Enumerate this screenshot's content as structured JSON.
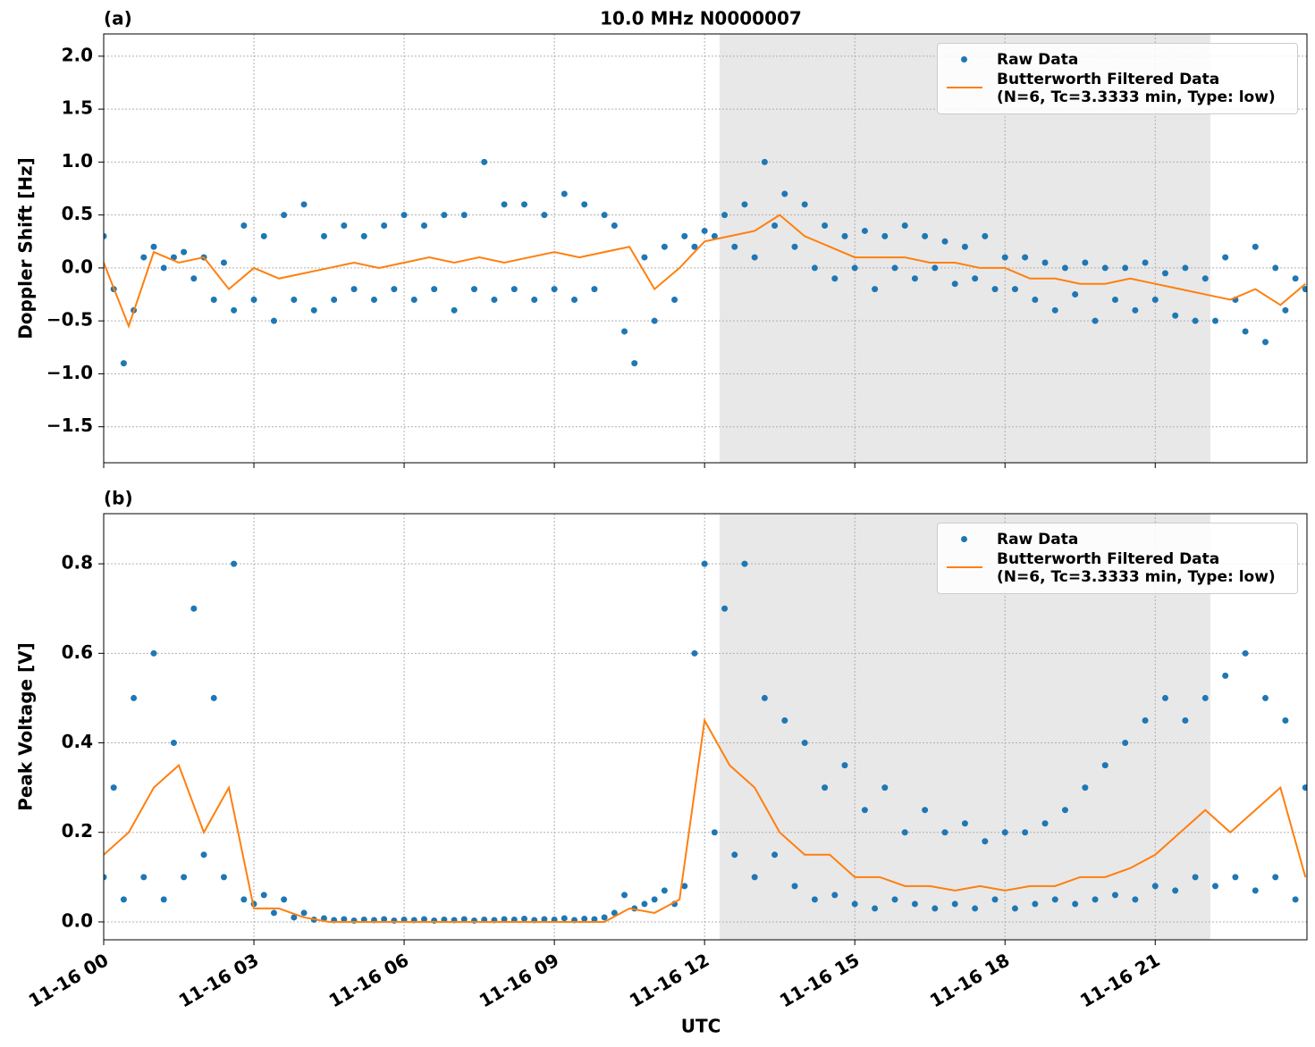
{
  "chart_data": [
    {
      "type": "scatter",
      "panel_label": "(a)",
      "title": "10.0 MHz N0000007",
      "ylabel": "Doppler Shift [Hz]",
      "xlim": [
        0,
        24.03
      ],
      "xticks": [
        0,
        3,
        6,
        9,
        12,
        15,
        18,
        21
      ],
      "ylim": [
        -1.84,
        2.21
      ],
      "yticks": [
        {
          "value": -1.5,
          "label": "−1.5"
        },
        {
          "value": -1.0,
          "label": "−1.0"
        },
        {
          "value": -0.5,
          "label": "−0.5"
        },
        {
          "value": 0,
          "label": "0.0"
        },
        0.5,
        {
          "value": 1.0,
          "label": "1.0"
        },
        1.5,
        {
          "value": 2.0,
          "label": "2.0"
        }
      ],
      "grid": true,
      "legend": "upper right",
      "shaded_span": [
        12.3,
        22.1
      ],
      "shade_color": "#e8e8e8",
      "series": [
        {
          "name": "Raw Data",
          "kind": "markers",
          "color": "#1f77b4",
          "x": [
            0,
            0.2,
            0.4,
            0.6,
            0.8,
            1,
            1.2,
            1.4,
            1.6,
            1.8,
            2,
            2.2,
            2.4,
            2.6,
            2.8,
            3,
            3.2,
            3.4,
            3.6,
            3.8,
            4,
            4.2,
            4.4,
            4.6,
            4.8,
            5,
            5.2,
            5.4,
            5.6,
            5.8,
            6,
            6.2,
            6.4,
            6.6,
            6.8,
            7,
            7.2,
            7.4,
            7.6,
            7.8,
            8,
            8.2,
            8.4,
            8.6,
            8.8,
            9,
            9.2,
            9.4,
            9.6,
            9.8,
            10,
            10.2,
            10.4,
            10.6,
            10.8,
            11,
            11.2,
            11.4,
            11.6,
            11.8,
            12,
            12.2,
            12.4,
            12.6,
            12.8,
            13,
            13.2,
            13.4,
            13.6,
            13.8,
            14,
            14.2,
            14.4,
            14.6,
            14.8,
            15,
            15.2,
            15.4,
            15.6,
            15.8,
            16,
            16.2,
            16.4,
            16.6,
            16.8,
            17,
            17.2,
            17.4,
            17.6,
            17.8,
            18,
            18.2,
            18.4,
            18.6,
            18.8,
            19,
            19.2,
            19.4,
            19.6,
            19.8,
            20,
            20.2,
            20.4,
            20.6,
            20.8,
            21,
            21.2,
            21.4,
            21.6,
            21.8,
            22,
            22.2,
            22.4,
            22.6,
            22.8,
            23,
            23.2,
            23.4,
            23.6,
            23.8,
            24
          ],
          "values": [
            0.3,
            -0.2,
            -0.9,
            -0.4,
            0.1,
            0.2,
            0.0,
            0.1,
            0.15,
            -0.1,
            0.1,
            -0.3,
            0.05,
            -0.4,
            0.4,
            -0.3,
            0.3,
            -0.5,
            0.5,
            -0.3,
            0.6,
            -0.4,
            0.3,
            -0.3,
            0.4,
            -0.2,
            0.3,
            -0.3,
            0.4,
            -0.2,
            0.5,
            -0.3,
            0.4,
            -0.2,
            0.5,
            -0.4,
            0.5,
            -0.2,
            1.0,
            -0.3,
            0.6,
            -0.2,
            0.6,
            -0.3,
            0.5,
            -0.2,
            0.7,
            -0.3,
            0.6,
            -0.2,
            0.5,
            0.4,
            -0.6,
            -0.9,
            0.1,
            -0.5,
            0.2,
            -0.3,
            0.3,
            0.2,
            0.35,
            0.3,
            0.5,
            0.2,
            0.6,
            0.1,
            1.0,
            0.4,
            0.7,
            0.2,
            0.6,
            0.0,
            0.4,
            -0.1,
            0.3,
            0.0,
            0.35,
            -0.2,
            0.3,
            0.0,
            0.4,
            -0.1,
            0.3,
            0.0,
            0.25,
            -0.15,
            0.2,
            -0.1,
            0.3,
            -0.2,
            0.1,
            -0.2,
            0.1,
            -0.3,
            0.05,
            -0.4,
            0.0,
            -0.25,
            0.05,
            -0.5,
            0.0,
            -0.3,
            0.0,
            -0.4,
            0.05,
            -0.3,
            -0.05,
            -0.45,
            0.0,
            -0.5,
            -0.1,
            -0.5,
            0.1,
            -0.3,
            -0.6,
            0.2,
            -0.7,
            0.0,
            -0.4,
            -0.1,
            -0.2
          ]
        },
        {
          "name": "Butterworth Filtered Data\n(N=6, Tc=3.3333 min, Type: low)",
          "kind": "line",
          "color": "#ff7f0e",
          "x": [
            0,
            0.5,
            1,
            1.5,
            2,
            2.5,
            3,
            3.5,
            4,
            4.5,
            5,
            5.5,
            6,
            6.5,
            7,
            7.5,
            8,
            8.5,
            9,
            9.5,
            10,
            10.5,
            11,
            11.5,
            12,
            12.5,
            13,
            13.5,
            14,
            14.5,
            15,
            15.5,
            16,
            16.5,
            17,
            17.5,
            18,
            18.5,
            19,
            19.5,
            20,
            20.5,
            21,
            21.5,
            22,
            22.5,
            23,
            23.5,
            24
          ],
          "values": [
            0.05,
            -0.55,
            0.15,
            0.05,
            0.1,
            -0.2,
            0.0,
            -0.1,
            -0.05,
            0.0,
            0.05,
            0.0,
            0.05,
            0.1,
            0.05,
            0.1,
            0.05,
            0.1,
            0.15,
            0.1,
            0.15,
            0.2,
            -0.2,
            0.0,
            0.25,
            0.3,
            0.35,
            0.5,
            0.3,
            0.2,
            0.1,
            0.1,
            0.1,
            0.05,
            0.05,
            0.0,
            0.0,
            -0.1,
            -0.1,
            -0.15,
            -0.15,
            -0.1,
            -0.15,
            -0.2,
            -0.25,
            -0.3,
            -0.2,
            -0.35,
            -0.15
          ]
        }
      ]
    },
    {
      "type": "scatter",
      "panel_label": "(b)",
      "ylabel": "Peak Voltage [V]",
      "xlabel": "UTC",
      "xlim": [
        0,
        24.03
      ],
      "xticks": [
        {
          "value": 0,
          "label": "11-16 00"
        },
        {
          "value": 3,
          "label": "11-16 03"
        },
        {
          "value": 6,
          "label": "11-16 06"
        },
        {
          "value": 9,
          "label": "11-16 09"
        },
        {
          "value": 12,
          "label": "11-16 12"
        },
        {
          "value": 15,
          "label": "11-16 15"
        },
        {
          "value": 18,
          "label": "11-16 18"
        },
        {
          "value": 21,
          "label": "11-16 21"
        }
      ],
      "ylim": [
        -0.04,
        0.912
      ],
      "yticks": [
        {
          "value": 0,
          "label": "0.0"
        },
        0.2,
        0.4,
        0.6,
        0.8
      ],
      "grid": true,
      "legend": "upper right",
      "shaded_span": [
        12.3,
        22.1
      ],
      "shade_color": "#e8e8e8",
      "series": [
        {
          "name": "Raw Data",
          "kind": "markers",
          "color": "#1f77b4",
          "x": [
            0,
            0.2,
            0.4,
            0.6,
            0.8,
            1,
            1.2,
            1.4,
            1.6,
            1.8,
            2,
            2.2,
            2.4,
            2.6,
            2.8,
            3,
            3.2,
            3.4,
            3.6,
            3.8,
            4,
            4.2,
            4.4,
            4.6,
            4.8,
            5,
            5.2,
            5.4,
            5.6,
            5.8,
            6,
            6.2,
            6.4,
            6.6,
            6.8,
            7,
            7.2,
            7.4,
            7.6,
            7.8,
            8,
            8.2,
            8.4,
            8.6,
            8.8,
            9,
            9.2,
            9.4,
            9.6,
            9.8,
            10,
            10.2,
            10.4,
            10.6,
            10.8,
            11,
            11.2,
            11.4,
            11.6,
            11.8,
            12,
            12.2,
            12.4,
            12.6,
            12.8,
            13,
            13.2,
            13.4,
            13.6,
            13.8,
            14,
            14.2,
            14.4,
            14.6,
            14.8,
            15,
            15.2,
            15.4,
            15.6,
            15.8,
            16,
            16.2,
            16.4,
            16.6,
            16.8,
            17,
            17.2,
            17.4,
            17.6,
            17.8,
            18,
            18.2,
            18.4,
            18.6,
            18.8,
            19,
            19.2,
            19.4,
            19.6,
            19.8,
            20,
            20.2,
            20.4,
            20.6,
            20.8,
            21,
            21.2,
            21.4,
            21.6,
            21.8,
            22,
            22.2,
            22.4,
            22.6,
            22.8,
            23,
            23.2,
            23.4,
            23.6,
            23.8,
            24
          ],
          "values": [
            0.1,
            0.3,
            0.05,
            0.5,
            0.1,
            0.6,
            0.05,
            0.4,
            0.1,
            0.7,
            0.15,
            0.5,
            0.1,
            0.8,
            0.05,
            0.04,
            0.06,
            0.02,
            0.05,
            0.01,
            0.02,
            0.005,
            0.008,
            0.004,
            0.006,
            0.003,
            0.005,
            0.004,
            0.006,
            0.003,
            0.005,
            0.004,
            0.006,
            0.003,
            0.005,
            0.004,
            0.006,
            0.003,
            0.005,
            0.004,
            0.006,
            0.005,
            0.007,
            0.004,
            0.006,
            0.005,
            0.008,
            0.004,
            0.007,
            0.006,
            0.01,
            0.02,
            0.06,
            0.03,
            0.04,
            0.05,
            0.07,
            0.04,
            0.08,
            0.6,
            0.8,
            0.2,
            0.7,
            0.15,
            0.8,
            0.1,
            0.5,
            0.15,
            0.45,
            0.08,
            0.4,
            0.05,
            0.3,
            0.06,
            0.35,
            0.04,
            0.25,
            0.03,
            0.3,
            0.05,
            0.2,
            0.04,
            0.25,
            0.03,
            0.2,
            0.04,
            0.22,
            0.03,
            0.18,
            0.05,
            0.2,
            0.03,
            0.2,
            0.04,
            0.22,
            0.05,
            0.25,
            0.04,
            0.3,
            0.05,
            0.35,
            0.06,
            0.4,
            0.05,
            0.45,
            0.08,
            0.5,
            0.07,
            0.45,
            0.1,
            0.5,
            0.08,
            0.55,
            0.1,
            0.6,
            0.07,
            0.5,
            0.1,
            0.45,
            0.05,
            0.3
          ]
        },
        {
          "name": "Butterworth Filtered Data\n(N=6, Tc=3.3333 min, Type: low)",
          "kind": "line",
          "color": "#ff7f0e",
          "x": [
            0,
            0.5,
            1,
            1.5,
            2,
            2.5,
            3,
            3.5,
            4,
            4.5,
            5,
            5.5,
            6,
            6.5,
            7,
            7.5,
            8,
            8.5,
            9,
            9.5,
            10,
            10.5,
            11,
            11.5,
            12,
            12.5,
            13,
            13.5,
            14,
            14.5,
            15,
            15.5,
            16,
            16.5,
            17,
            17.5,
            18,
            18.5,
            19,
            19.5,
            20,
            20.5,
            21,
            21.5,
            22,
            22.5,
            23,
            23.5,
            24
          ],
          "values": [
            0.15,
            0.2,
            0.3,
            0.35,
            0.2,
            0.3,
            0.03,
            0.03,
            0.01,
            0.0,
            0.0,
            0.0,
            0.0,
            0.0,
            0.0,
            0.0,
            0.0,
            0.0,
            0.0,
            0.0,
            0.0,
            0.03,
            0.02,
            0.05,
            0.45,
            0.35,
            0.3,
            0.2,
            0.15,
            0.15,
            0.1,
            0.1,
            0.08,
            0.08,
            0.07,
            0.08,
            0.07,
            0.08,
            0.08,
            0.1,
            0.1,
            0.12,
            0.15,
            0.2,
            0.25,
            0.2,
            0.25,
            0.3,
            0.1
          ]
        }
      ]
    }
  ]
}
